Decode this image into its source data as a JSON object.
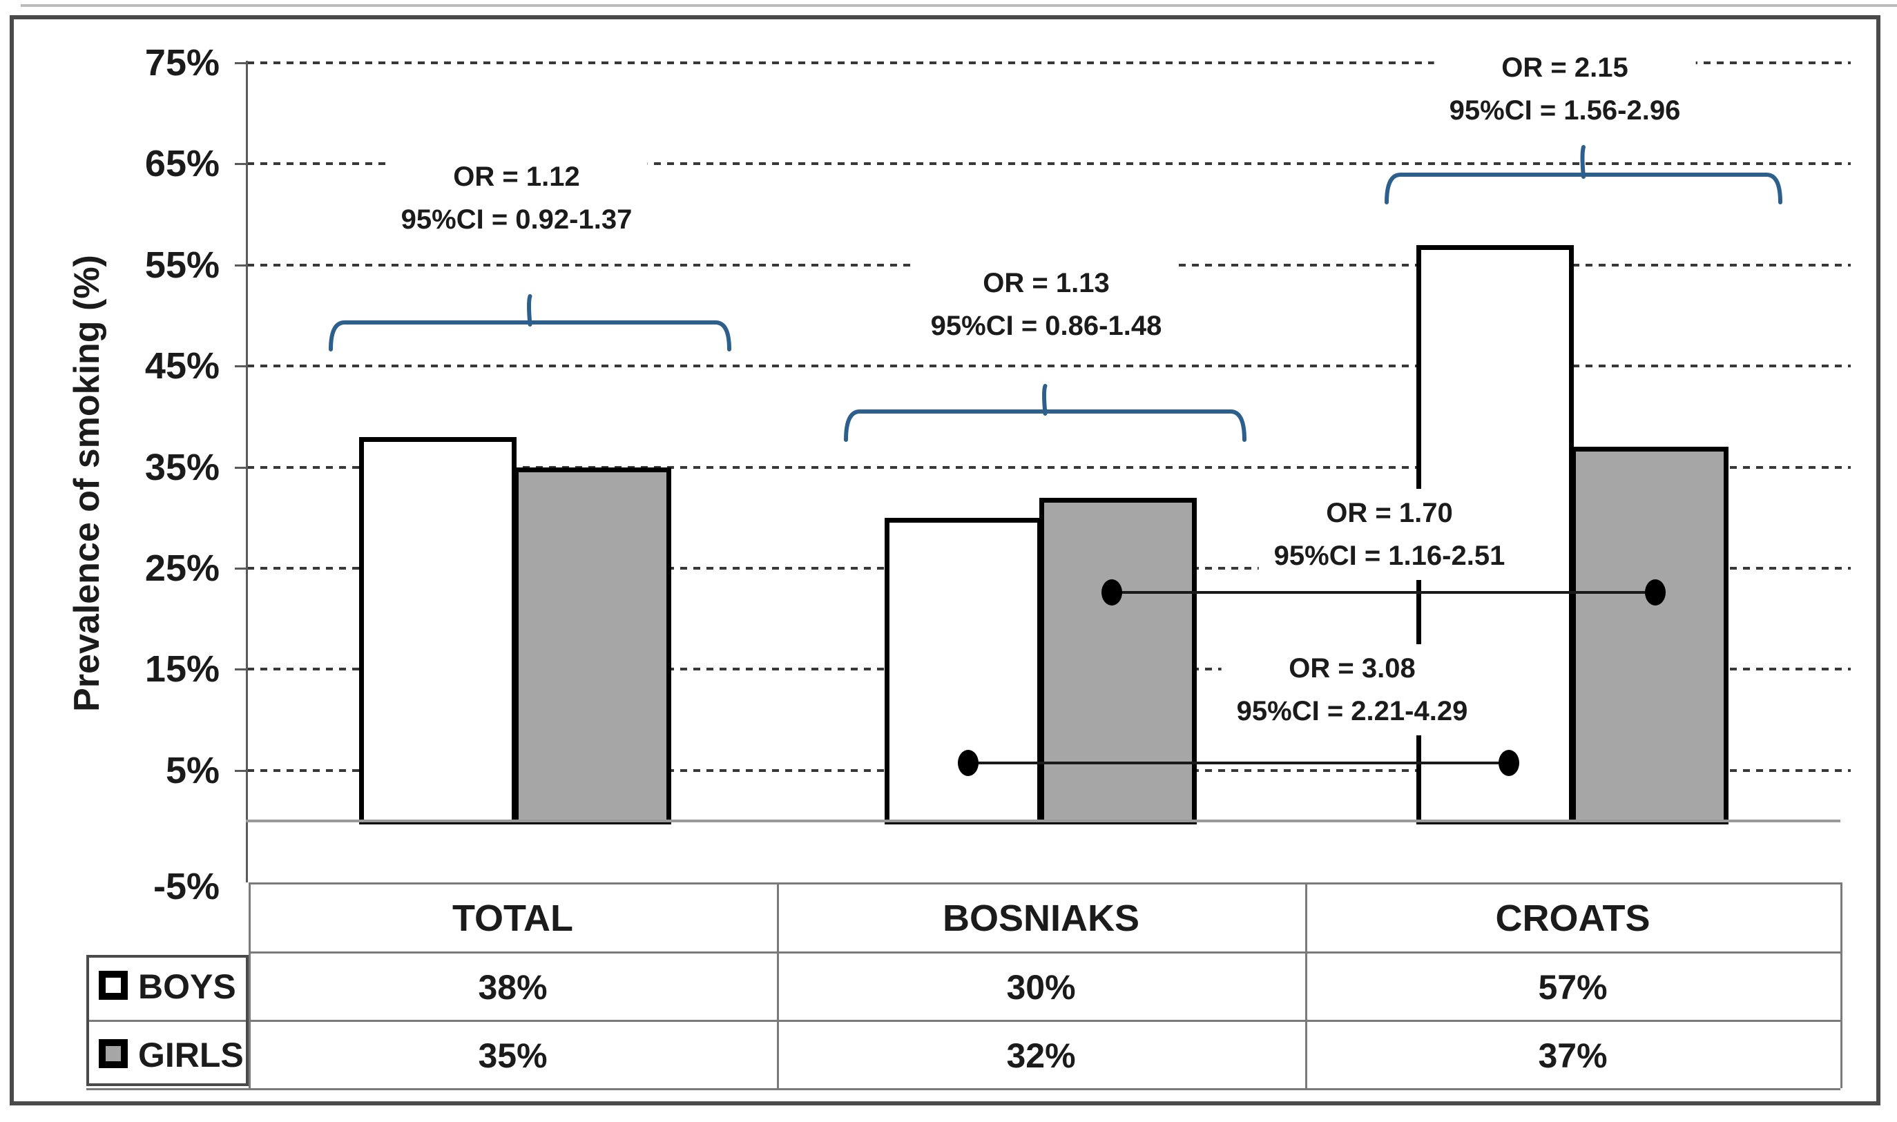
{
  "chart_data": {
    "type": "bar",
    "title": "",
    "categories": [
      "TOTAL",
      "BOSNIAKS",
      "CROATS"
    ],
    "series": [
      {
        "name": "BOYS",
        "values": [
          38,
          30,
          57
        ]
      },
      {
        "name": "GIRLS",
        "values": [
          35,
          32,
          37
        ]
      }
    ],
    "value_unit": "%",
    "xlabel": "",
    "ylabel": "Prevalence of smoking (%)",
    "ylim": [
      -5,
      75
    ],
    "ytick_step": 10,
    "ytick_labels": [
      "75%",
      "65%",
      "55%",
      "45%",
      "35%",
      "25%",
      "15%",
      "5%",
      "-5%"
    ],
    "grid": "horizontal-dashed",
    "legend_position": "bottom-left-table",
    "annotations": [
      {
        "type": "brace",
        "target": "TOTAL boys vs girls",
        "line1": "OR = 1.12",
        "line2": "95%CI = 0.92-1.37"
      },
      {
        "type": "brace",
        "target": "BOSNIAKS boys vs girls",
        "line1": "OR = 1.13",
        "line2": "95%CI = 0.86-1.48"
      },
      {
        "type": "brace",
        "target": "CROATS boys vs girls",
        "line1": "OR = 2.15",
        "line2": "95%CI = 1.56-2.96"
      },
      {
        "type": "dot-line",
        "target": "girls BOSNIAKS vs CROATS",
        "line1": "OR = 1.70",
        "line2": "95%CI = 1.16-2.51"
      },
      {
        "type": "dot-line",
        "target": "boys BOSNIAKS vs CROATS",
        "line1": "OR = 3.08",
        "line2": "95%CI = 2.21-4.29"
      }
    ]
  },
  "table": {
    "columns": [
      "TOTAL",
      "BOSNIAKS",
      "CROATS"
    ],
    "rows": [
      {
        "label": "BOYS",
        "values": [
          "38%",
          "30%",
          "57%"
        ]
      },
      {
        "label": "GIRLS",
        "values": [
          "35%",
          "32%",
          "37%"
        ]
      }
    ]
  },
  "colors": {
    "boys_fill": "#ffffff",
    "girls_fill": "#a6a6a6",
    "bar_border": "#000000",
    "brace_blue": "#2d5f8d",
    "gridline": "#383838",
    "connector": "#1a1a1a",
    "table_border": "#7a7a7a",
    "legend_border": "#4a4a4a",
    "frame": "#4a4a4a"
  }
}
